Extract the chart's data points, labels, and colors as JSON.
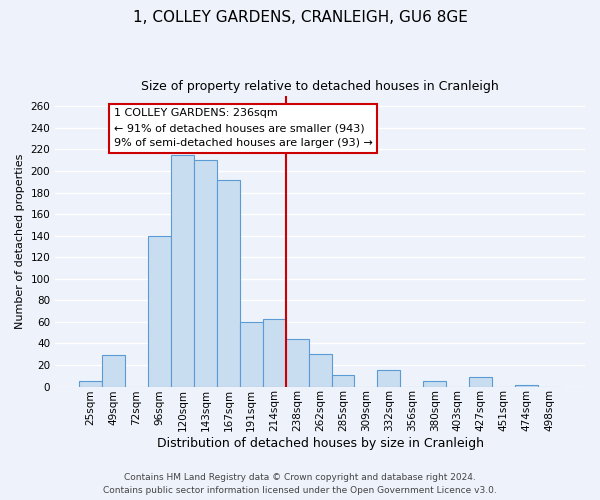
{
  "title": "1, COLLEY GARDENS, CRANLEIGH, GU6 8GE",
  "subtitle": "Size of property relative to detached houses in Cranleigh",
  "xlabel": "Distribution of detached houses by size in Cranleigh",
  "ylabel": "Number of detached properties",
  "bar_labels": [
    "25sqm",
    "49sqm",
    "72sqm",
    "96sqm",
    "120sqm",
    "143sqm",
    "167sqm",
    "191sqm",
    "214sqm",
    "238sqm",
    "262sqm",
    "285sqm",
    "309sqm",
    "332sqm",
    "356sqm",
    "380sqm",
    "403sqm",
    "427sqm",
    "451sqm",
    "474sqm",
    "498sqm"
  ],
  "bar_values": [
    5,
    29,
    0,
    140,
    215,
    210,
    192,
    60,
    63,
    44,
    30,
    11,
    0,
    15,
    0,
    5,
    0,
    9,
    0,
    1,
    0
  ],
  "bar_color": "#c9ddf0",
  "bar_edge_color": "#5b9bd5",
  "vline_x": 8.5,
  "vline_color": "#cc0000",
  "annotation_text": "1 COLLEY GARDENS: 236sqm\n← 91% of detached houses are smaller (943)\n9% of semi-detached houses are larger (93) →",
  "annotation_box_color": "#ffffff",
  "annotation_box_edge": "#cc0000",
  "ylim": [
    0,
    270
  ],
  "yticks": [
    0,
    20,
    40,
    60,
    80,
    100,
    120,
    140,
    160,
    180,
    200,
    220,
    240,
    260
  ],
  "footer1": "Contains HM Land Registry data © Crown copyright and database right 2024.",
  "footer2": "Contains public sector information licensed under the Open Government Licence v3.0.",
  "background_color": "#eef2fa",
  "grid_color": "#ffffff",
  "title_fontsize": 11,
  "subtitle_fontsize": 9,
  "ylabel_fontsize": 8,
  "xlabel_fontsize": 9,
  "tick_fontsize": 7.5,
  "footer_fontsize": 6.5
}
